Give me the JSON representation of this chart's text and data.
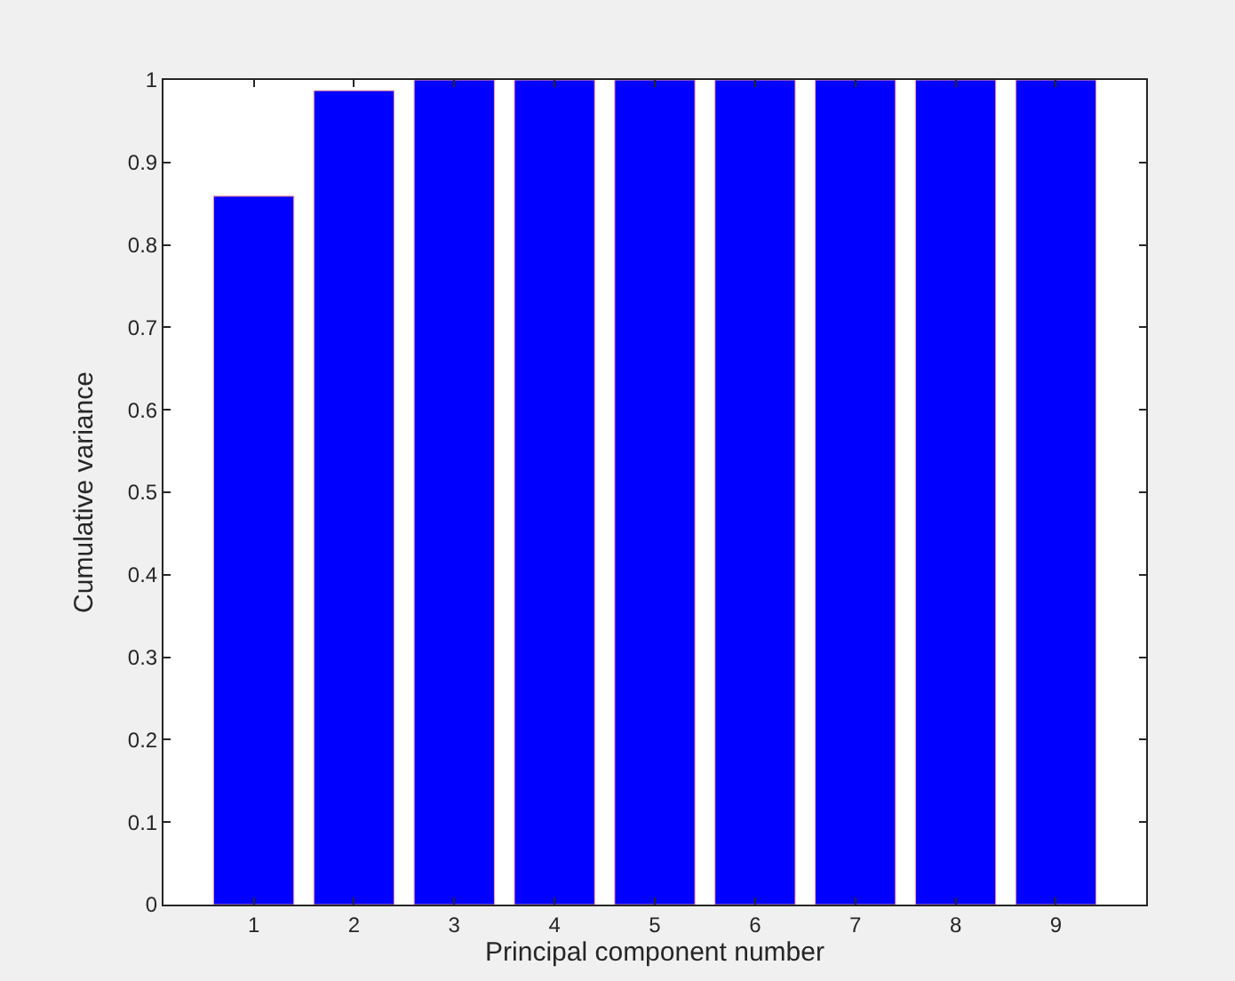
{
  "chart_data": {
    "type": "bar",
    "xlabel": "Principal component number",
    "ylabel": "Cumulative variance",
    "categories": [
      "1",
      "2",
      "3",
      "4",
      "5",
      "6",
      "7",
      "8",
      "9"
    ],
    "values": [
      0.859,
      0.987,
      1,
      1,
      1,
      1,
      1,
      1,
      1
    ],
    "color": "#0000ff",
    "ylim": [
      0,
      1
    ],
    "yticks": [
      0,
      0.1,
      0.2,
      0.3,
      0.4,
      0.5,
      0.6,
      0.7,
      0.8,
      0.9,
      1
    ]
  }
}
